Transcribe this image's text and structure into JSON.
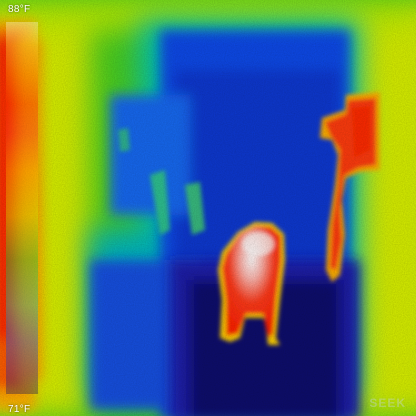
{
  "scale": {
    "max_label": "88°F",
    "min_label": "71°F"
  },
  "watermark": "SEEK",
  "palette": {
    "cold": "#0a0a60",
    "cool": "#0050ff",
    "mid": "#00d040",
    "warm": "#ffe23a",
    "hot": "#ff2a00",
    "hottest": "#fffde8"
  }
}
